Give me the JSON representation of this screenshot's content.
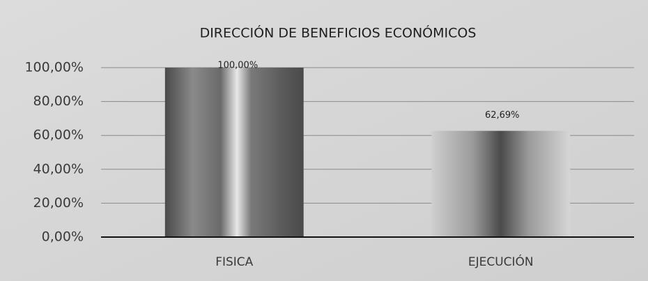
{
  "chart_data": {
    "type": "bar",
    "title": "DIRECCIÓN DE BENEFICIOS ECONÓMICOS",
    "categories": [
      "FISICA",
      "EJECUCIÓN"
    ],
    "values": [
      100,
      62.69
    ],
    "value_labels": [
      "100,00%",
      "62,69%"
    ],
    "color": "#4a4a4a",
    "ylim": [
      0,
      100
    ],
    "yticks": [
      {
        "value": 0,
        "label": "0,00%"
      },
      {
        "value": 20,
        "label": "20,00%"
      },
      {
        "value": 40,
        "label": "40,00%"
      },
      {
        "value": 60,
        "label": "60,00%"
      },
      {
        "value": 80,
        "label": "80,00%"
      },
      {
        "value": 100,
        "label": "100,00%"
      }
    ],
    "grid": true
  }
}
